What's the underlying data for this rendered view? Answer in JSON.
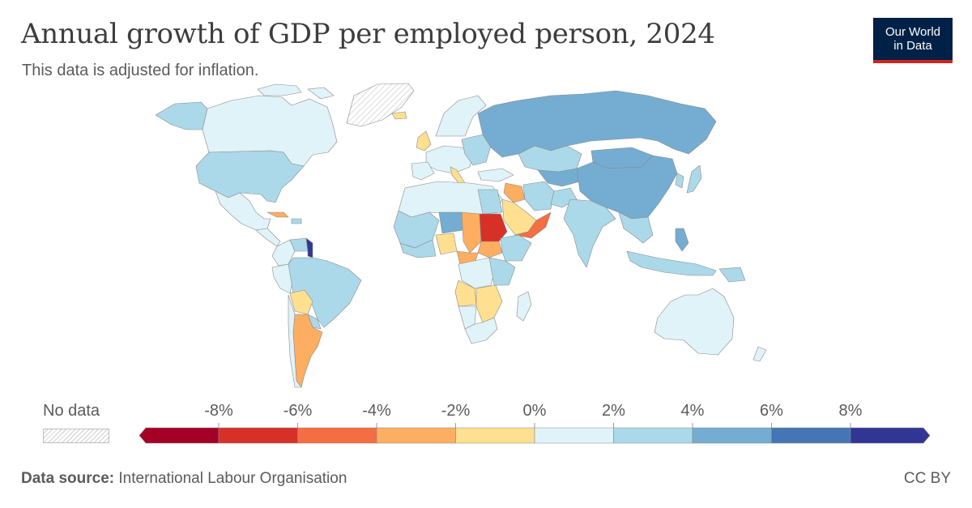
{
  "header": {
    "title": "Annual growth of GDP per employed person, 2024",
    "subtitle": "This data is adjusted for inflation."
  },
  "logo": {
    "line1": "Our World",
    "line2": "in Data"
  },
  "legend": {
    "no_data_label": "No data",
    "ticks": [
      "-8%",
      "-6%",
      "-4%",
      "-2%",
      "0%",
      "2%",
      "4%",
      "6%",
      "8%"
    ],
    "bins": [
      {
        "range": "< -8%",
        "color": "#a50026"
      },
      {
        "range": "-8% to -6%",
        "color": "#d73027"
      },
      {
        "range": "-6% to -4%",
        "color": "#f46d43"
      },
      {
        "range": "-4% to -2%",
        "color": "#fdae61"
      },
      {
        "range": "-2% to 0%",
        "color": "#fee090"
      },
      {
        "range": "0% to 2%",
        "color": "#e0f3f8"
      },
      {
        "range": "2% to 4%",
        "color": "#abd9e9"
      },
      {
        "range": "4% to 6%",
        "color": "#74add1"
      },
      {
        "range": "6% to 8%",
        "color": "#4575b4"
      },
      {
        "range": "> 8%",
        "color": "#313695"
      }
    ]
  },
  "regions": [
    {
      "name": "Canada",
      "bin": "0% to 2%"
    },
    {
      "name": "United States",
      "bin": "2% to 4%"
    },
    {
      "name": "Mexico",
      "bin": "0% to 2%"
    },
    {
      "name": "Greenland",
      "bin": "No data"
    },
    {
      "name": "Brazil",
      "bin": "2% to 4%"
    },
    {
      "name": "Argentina",
      "bin": "-4% to -2%"
    },
    {
      "name": "Bolivia",
      "bin": "-2% to 0%"
    },
    {
      "name": "Guyana",
      "bin": "> 8%"
    },
    {
      "name": "Russia",
      "bin": "4% to 6%"
    },
    {
      "name": "China",
      "bin": "4% to 6%"
    },
    {
      "name": "India",
      "bin": "2% to 4%"
    },
    {
      "name": "Sudan",
      "bin": "-8% to -6%"
    },
    {
      "name": "Chad",
      "bin": "-4% to -2%"
    },
    {
      "name": "Australia",
      "bin": "0% to 2%"
    },
    {
      "name": "Saudi Arabia",
      "bin": "-2% to 0%"
    },
    {
      "name": "Yemen",
      "bin": "-6% to -4%"
    }
  ],
  "footer": {
    "source_label": "Data source:",
    "source_value": "International Labour Organisation",
    "license": "CC BY"
  }
}
